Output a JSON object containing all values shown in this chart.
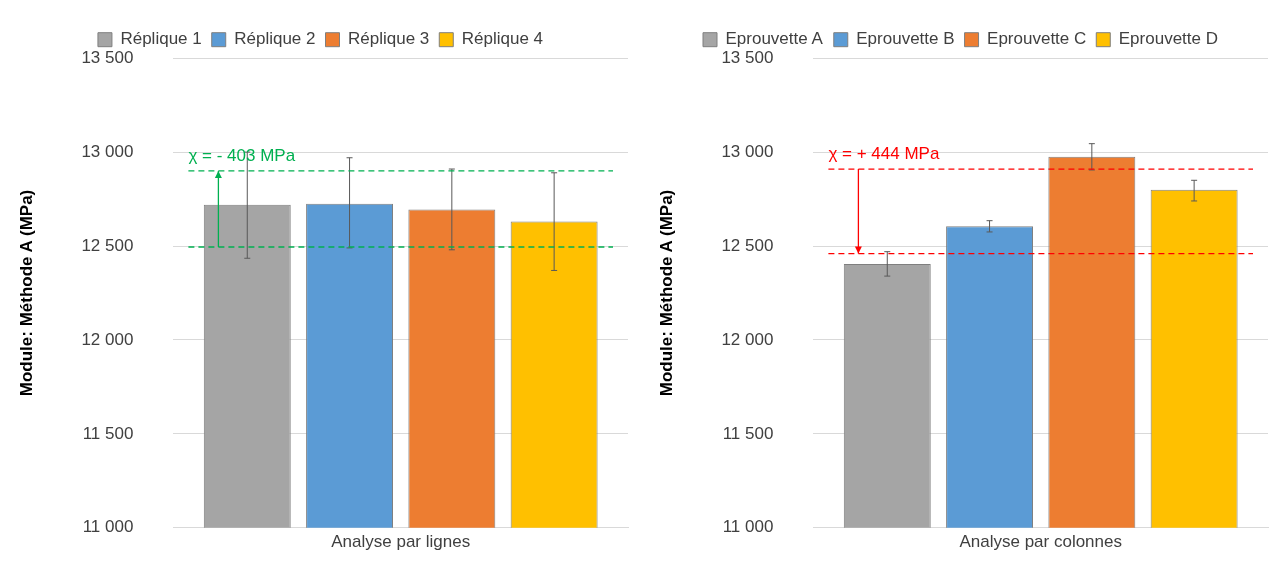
{
  "chart_data": [
    {
      "type": "bar",
      "categories": [
        null
      ],
      "xlabel": "Analyse par lignes",
      "ylabel": "Module: Méthode A (MPa)",
      "ylim": [
        11000,
        13500
      ],
      "yticks": [
        {
          "value": 11000,
          "label": "11 000"
        },
        {
          "value": 11500,
          "label": "11 500"
        },
        {
          "value": 12000,
          "label": "12 000"
        },
        {
          "value": 12500,
          "label": "12 500"
        },
        {
          "value": 13000,
          "label": "13 000"
        },
        {
          "value": 13500,
          "label": "13 500"
        }
      ],
      "grid": "y",
      "legend": "top",
      "series": [
        {
          "name": "Réplique 1",
          "color": "#a5a5a5",
          "values": [
            12720
          ],
          "errors": [
            [
              12435,
              13000
            ]
          ]
        },
        {
          "name": "Réplique 2",
          "color": "#5b9bd5",
          "values": [
            12725
          ],
          "errors": [
            [
              12490,
              12970
            ]
          ]
        },
        {
          "name": "Réplique 3",
          "color": "#ed7d31",
          "values": [
            12695
          ],
          "errors": [
            [
              12480,
              12910
            ]
          ]
        },
        {
          "name": "Réplique 4",
          "color": "#ffc000",
          "values": [
            12630
          ],
          "errors": [
            [
              12370,
              12890
            ]
          ]
        }
      ],
      "ref_lines": [
        {
          "axis": "y",
          "value": 12495,
          "color": "#00b050",
          "line_style": "dashed"
        },
        {
          "axis": "y",
          "value": 12900,
          "color": "#00b050",
          "line_style": "dashed"
        }
      ],
      "annotations": [
        "χ = - 403 MPa"
      ]
    },
    {
      "type": "bar",
      "categories": [
        null
      ],
      "xlabel": "Analyse par colonnes",
      "ylabel": "Module: Méthode A (MPa)",
      "ylim": [
        11000,
        13500
      ],
      "yticks": [
        {
          "value": 11000,
          "label": "11 000"
        },
        {
          "value": 11500,
          "label": "11 500"
        },
        {
          "value": 12000,
          "label": "12 000"
        },
        {
          "value": 12500,
          "label": "12 500"
        },
        {
          "value": 13000,
          "label": "13 000"
        },
        {
          "value": 13500,
          "label": "13 500"
        }
      ],
      "grid": "y",
      "legend": "top",
      "series": [
        {
          "name": "Eprouvette A",
          "color": "#a5a5a5",
          "values": [
            12405
          ],
          "errors": [
            [
              12340,
              12470
            ]
          ]
        },
        {
          "name": "Eprouvette B",
          "color": "#5b9bd5",
          "values": [
            12605
          ],
          "errors": [
            [
              12575,
              12635
            ]
          ]
        },
        {
          "name": "Eprouvette C",
          "color": "#ed7d31",
          "values": [
            12975
          ],
          "errors": [
            [
              12905,
              13045
            ]
          ]
        },
        {
          "name": "Eprouvette D",
          "color": "#ffc000",
          "values": [
            12800
          ],
          "errors": [
            [
              12740,
              12850
            ]
          ]
        }
      ],
      "ref_lines": [
        {
          "axis": "y",
          "value": 12910,
          "color": "#ff0000",
          "line_style": "dashed"
        },
        {
          "axis": "y",
          "value": 12460,
          "color": "#ff0000",
          "line_style": "dashed"
        }
      ],
      "annotations": [
        "χ = + 444 MPa"
      ]
    }
  ]
}
